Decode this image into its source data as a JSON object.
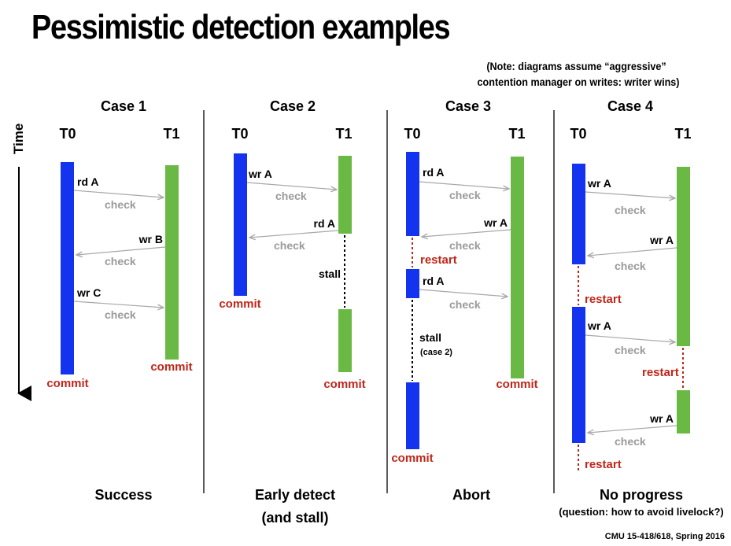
{
  "title": "Pessimistic detection examples",
  "note": {
    "line1": "(Note: diagrams assume “aggressive”",
    "line2": "contention manager on writes: writer wins)"
  },
  "time_label": "Time",
  "footer": "CMU 15-418/618, Spring 2016",
  "thread_labels": {
    "t0": "T0",
    "t1": "T1"
  },
  "colors": {
    "t0_bar": "#1433ee",
    "t1_bar": "#6ab944",
    "commit_text": "#c0261a",
    "check_text": "#9a9a9a",
    "arrow": "#a8a8a8"
  },
  "cases": [
    {
      "title": "Case 1",
      "caption": [
        "Success"
      ],
      "events": {
        "rdA": "rd A",
        "wrB": "wr B",
        "wrC": "wr C",
        "check": "check",
        "commit": "commit"
      }
    },
    {
      "title": "Case 2",
      "caption": [
        "Early detect",
        "(and stall)"
      ],
      "events": {
        "wrA": "wr A",
        "rdA": "rd A",
        "stall": "stall",
        "check": "check",
        "commit": "commit"
      }
    },
    {
      "title": "Case 3",
      "caption": [
        "Abort"
      ],
      "events": {
        "rdA": "rd A",
        "wrA": "wr A",
        "restart": "restart",
        "stall": "stall",
        "stall_note": "(case 2)",
        "check": "check",
        "commit": "commit"
      }
    },
    {
      "title": "Case 4",
      "caption": [
        "No progress",
        "(question: how to avoid livelock?)"
      ],
      "events": {
        "wrA": "wr A",
        "restart": "restart",
        "check": "check"
      }
    }
  ]
}
